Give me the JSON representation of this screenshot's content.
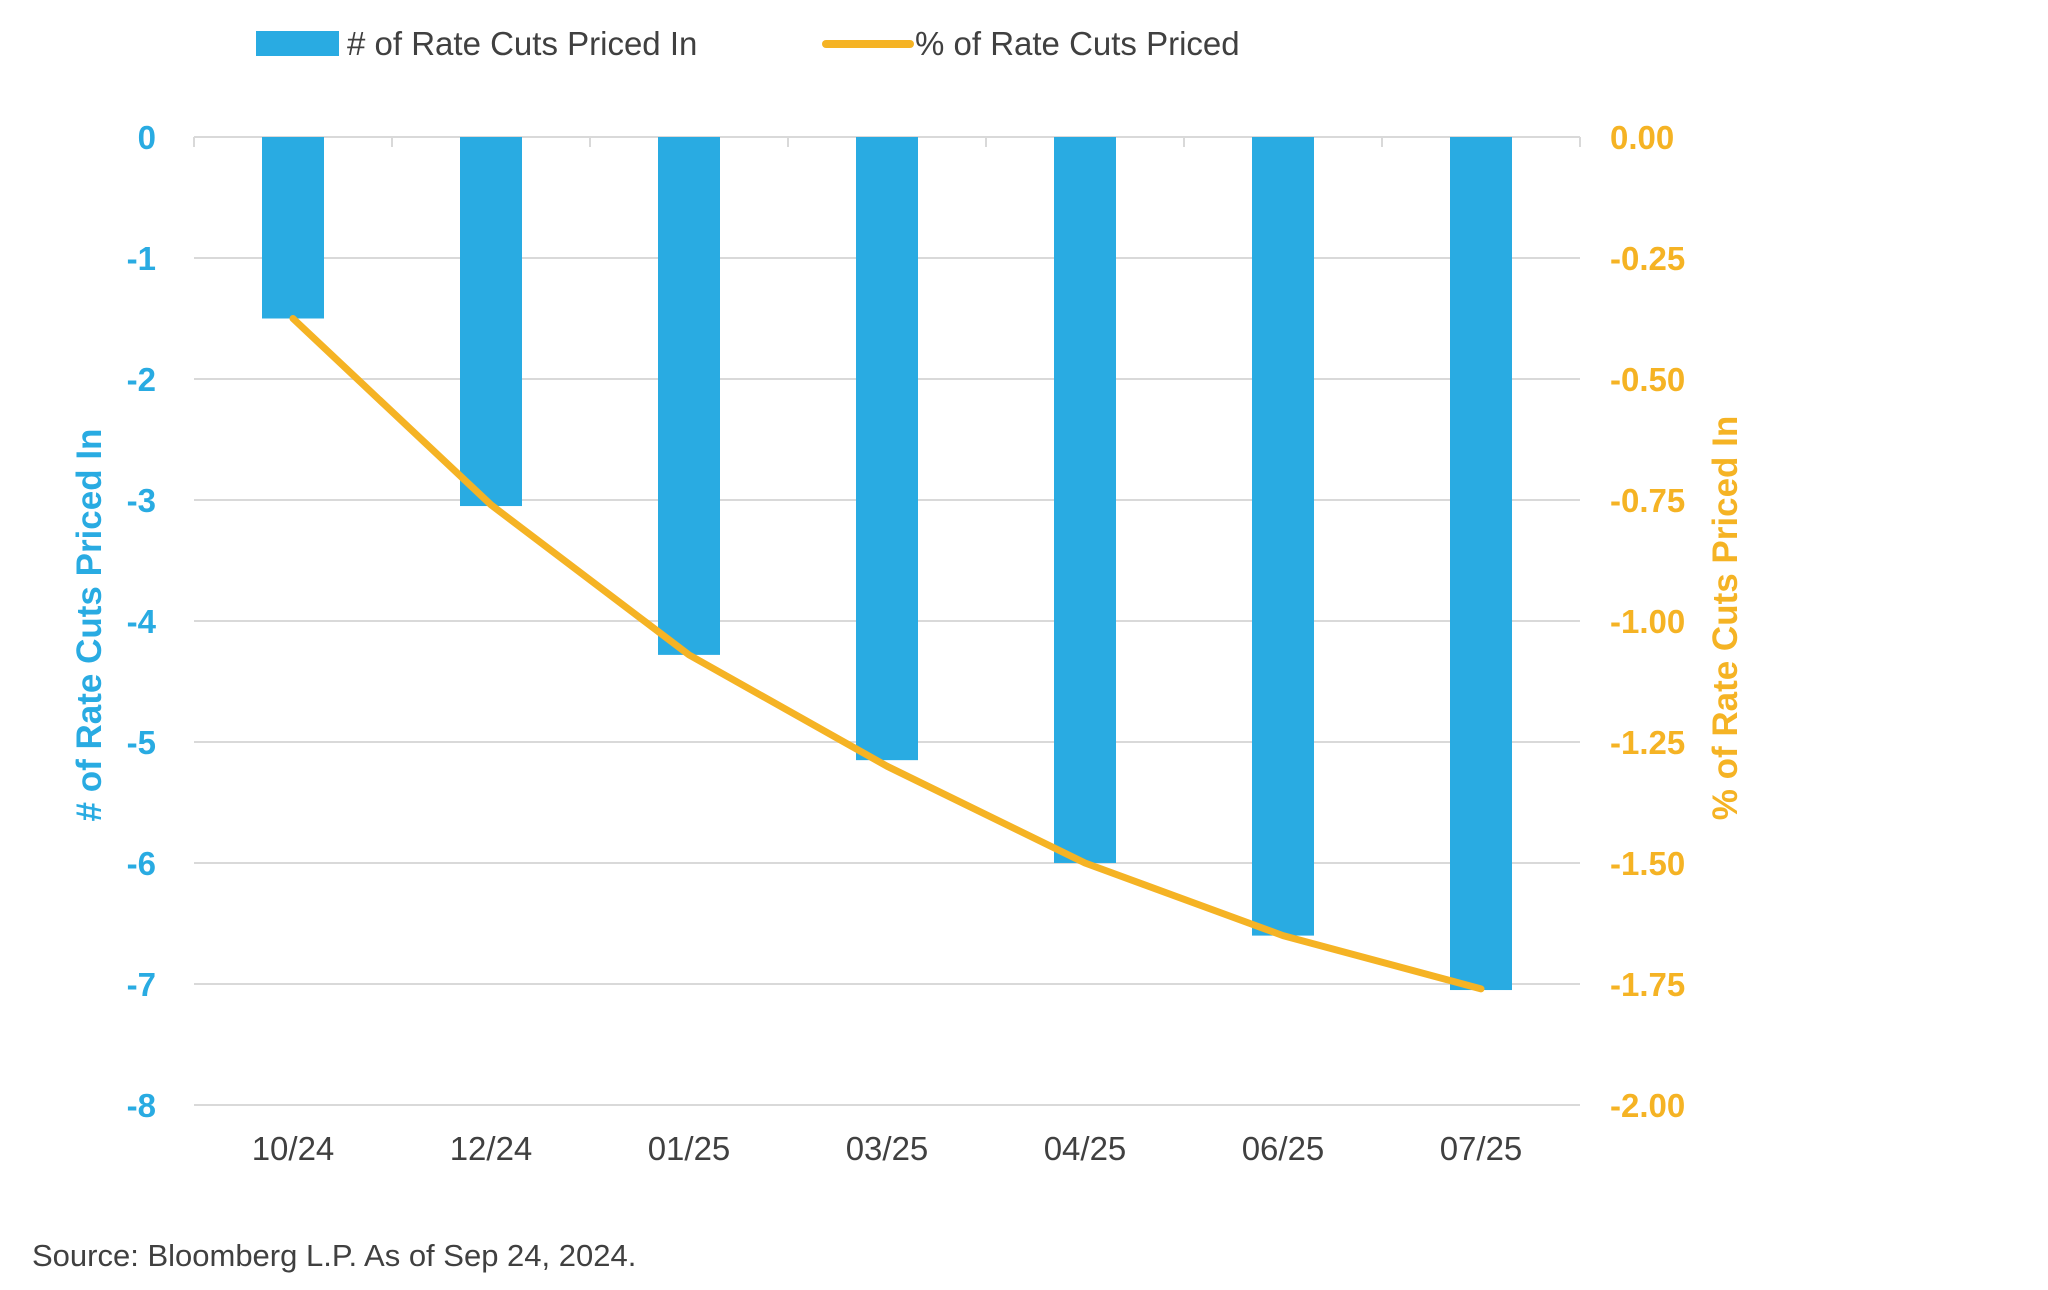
{
  "chart_data": {
    "type": "bar",
    "combo": "bar-line",
    "categories": [
      "10/24",
      "12/24",
      "01/25",
      "03/25",
      "04/25",
      "06/25",
      "07/25"
    ],
    "series": [
      {
        "name": "# of Rate Cuts Priced In",
        "type": "bar",
        "axis": "left",
        "values": [
          -1.5,
          -3.05,
          -4.28,
          -5.15,
          -6.0,
          -6.6,
          -7.05
        ]
      },
      {
        "name": "% of Rate Cuts Priced",
        "type": "line",
        "axis": "right",
        "values": [
          -0.375,
          -0.76,
          -1.07,
          -1.3,
          -1.5,
          -1.65,
          -1.76
        ]
      }
    ],
    "left_axis": {
      "label": "# of Rate Cuts Priced In",
      "ylim": [
        -8,
        0
      ],
      "ticks": [
        0,
        -1,
        -2,
        -3,
        -4,
        -5,
        -6,
        -7,
        -8
      ],
      "tick_labels": [
        "0",
        "-1",
        "-2",
        "-3",
        "-4",
        "-5",
        "-6",
        "-7",
        "-8"
      ]
    },
    "right_axis": {
      "label": "% of Rate Cuts Priced In",
      "ylim": [
        -2.0,
        0.0
      ],
      "ticks": [
        0.0,
        -0.25,
        -0.5,
        -0.75,
        -1.0,
        -1.25,
        -1.5,
        -1.75,
        -2.0
      ],
      "tick_labels": [
        "0.00",
        "-0.25",
        "-0.50",
        "-0.75",
        "-1.00",
        "-1.25",
        "-1.50",
        "-1.75",
        "-2.00"
      ]
    },
    "legend_position": "top-left",
    "grid": true,
    "source": "Source: Bloomberg L.P. As of Sep 24, 2024."
  },
  "colors": {
    "bar": "#29ABE2",
    "line": "#F5B324",
    "grid": "#D9D9D9",
    "axis_text": "#404040"
  }
}
